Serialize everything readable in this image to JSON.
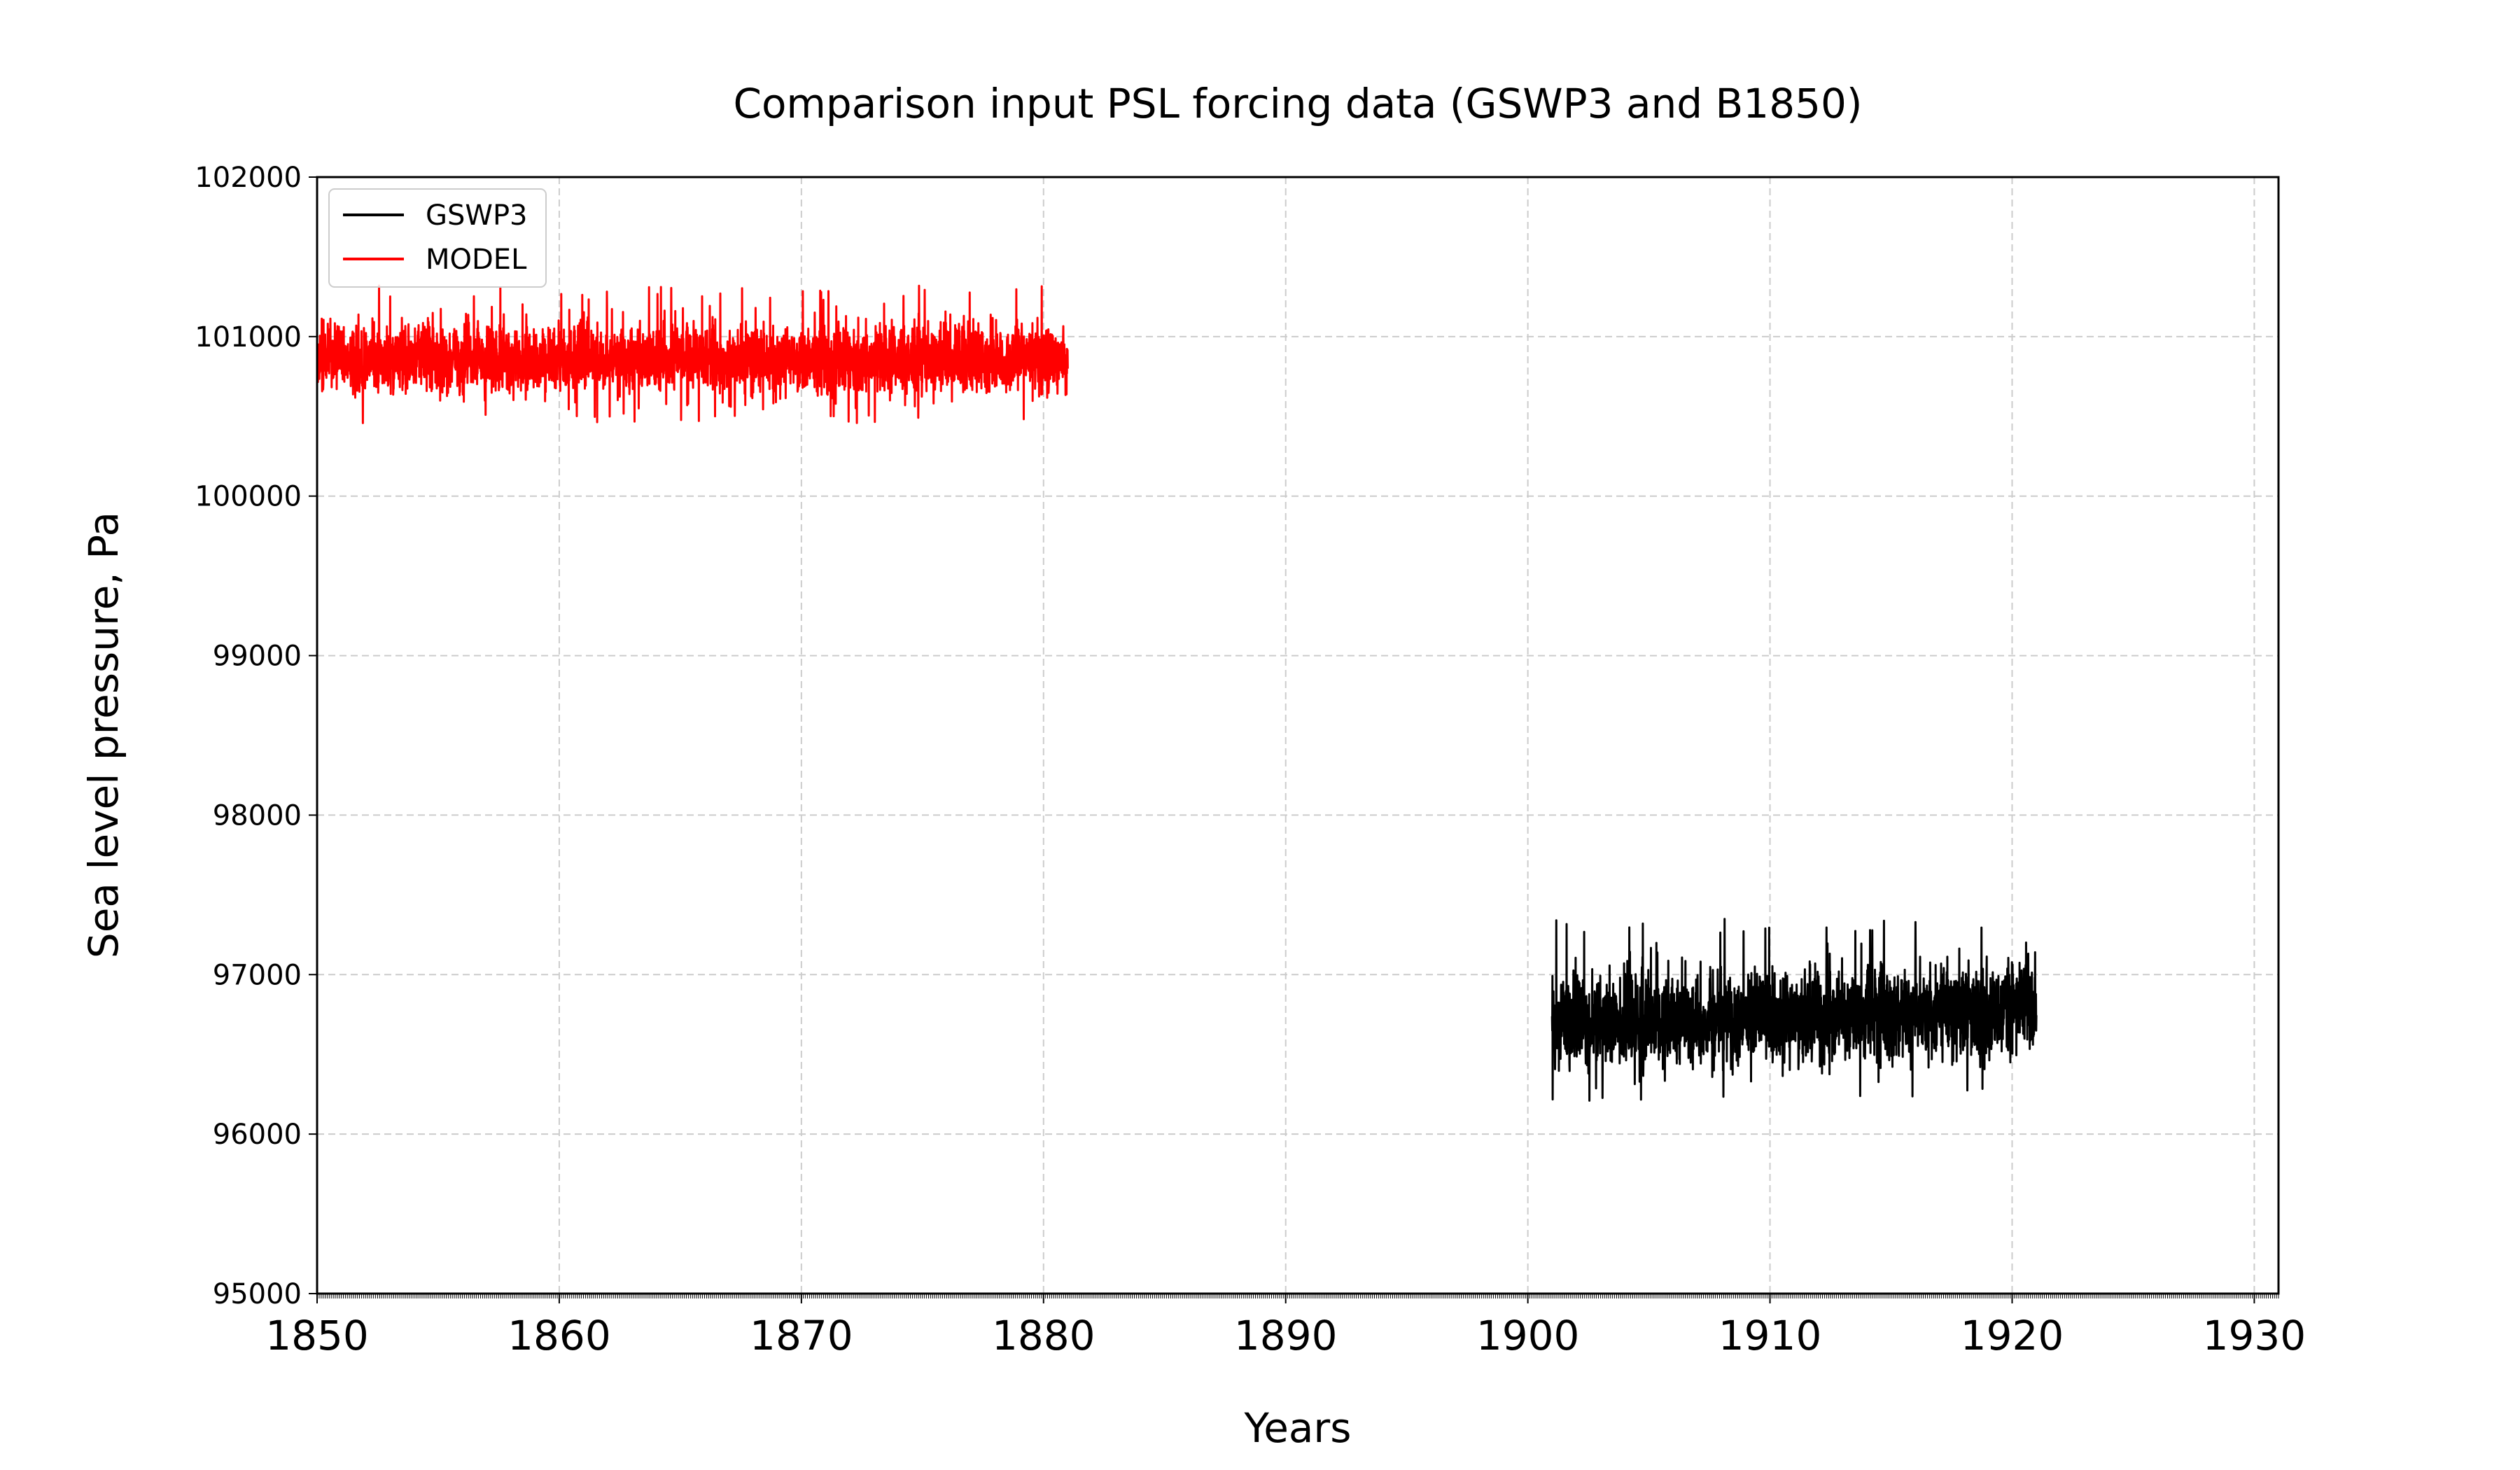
{
  "chart_data": {
    "type": "line",
    "title": "Comparison input PSL forcing data (GSWP3 and B1850)",
    "xlabel": "Years",
    "ylabel": "Sea level pressure, Pa",
    "xlim": [
      1850,
      1931
    ],
    "ylim": [
      95000,
      102000
    ],
    "xticks": [
      1850,
      1860,
      1870,
      1880,
      1890,
      1900,
      1910,
      1920,
      1930
    ],
    "yticks": [
      95000,
      96000,
      97000,
      98000,
      99000,
      100000,
      101000,
      102000
    ],
    "grid": true,
    "legend": "top-left",
    "series": [
      {
        "name": "GSWP3",
        "color": "#000000",
        "x_start": 1901,
        "x_end": 1921,
        "mean_start": 96650,
        "mean_end": 96800,
        "min": 96200,
        "max": 97350
      },
      {
        "name": "MODEL",
        "color": "#ff0000",
        "x_start": 1850,
        "x_end": 1881,
        "mean_start": 100850,
        "mean_end": 100850,
        "min": 100450,
        "max": 101320
      }
    ]
  }
}
